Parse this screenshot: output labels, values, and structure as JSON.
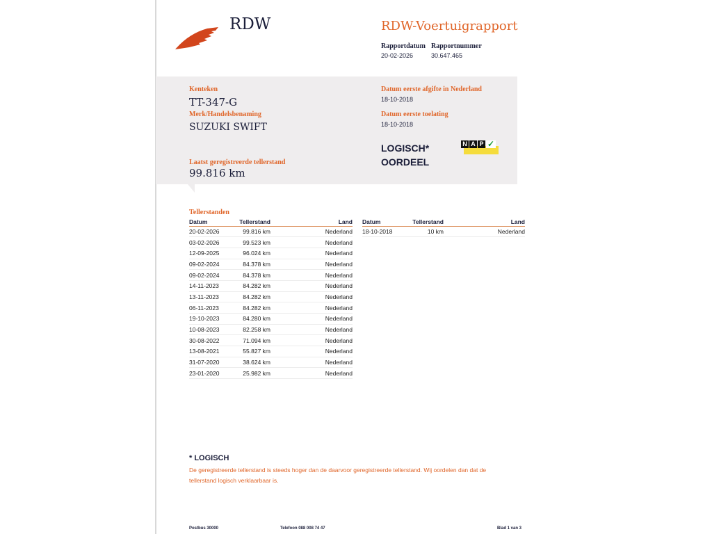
{
  "header": {
    "logo_text": "RDW",
    "title": "RDW-Voertuigrapport",
    "rapportdatum_label": "Rapportdatum",
    "rapportdatum": "20-02-2026",
    "rapportnummer_label": "Rapportnummer",
    "rapportnummer": "30.647.465"
  },
  "vehicle": {
    "kenteken_label": "Kenteken",
    "kenteken": "TT-347-G",
    "merk_label": "Merk/Handelsbenaming",
    "merk": "SUZUKI SWIFT",
    "teller_label": "Laatst geregistreerde tellerstand",
    "teller": "99.816 km",
    "afgifte_label": "Datum eerste afgifte in Nederland",
    "afgifte": "18-10-2018",
    "toelating_label": "Datum eerste toelating",
    "toelating": "18-10-2018",
    "oordeel_line1": "LOGISCH*",
    "oordeel_line2": "OORDEEL",
    "nap_letters": [
      "N",
      "A",
      "P"
    ],
    "nap_icon": "checkmark-icon",
    "brand_color": "#e0662a"
  },
  "tellerstanden": {
    "title": "Tellerstanden",
    "headers": [
      "Datum",
      "Tellerstand",
      "Land"
    ],
    "left": [
      [
        "20-02-2026",
        "99.816 km",
        "Nederland"
      ],
      [
        "03-02-2026",
        "99.523 km",
        "Nederland"
      ],
      [
        "12-09-2025",
        "96.024 km",
        "Nederland"
      ],
      [
        "09-02-2024",
        "84.378 km",
        "Nederland"
      ],
      [
        "09-02-2024",
        "84.378 km",
        "Nederland"
      ],
      [
        "14-11-2023",
        "84.282 km",
        "Nederland"
      ],
      [
        "13-11-2023",
        "84.282 km",
        "Nederland"
      ],
      [
        "06-11-2023",
        "84.282 km",
        "Nederland"
      ],
      [
        "19-10-2023",
        "84.280 km",
        "Nederland"
      ],
      [
        "10-08-2023",
        "82.258 km",
        "Nederland"
      ],
      [
        "30-08-2022",
        "71.094 km",
        "Nederland"
      ],
      [
        "13-08-2021",
        "55.827 km",
        "Nederland"
      ],
      [
        "31-07-2020",
        "38.624 km",
        "Nederland"
      ],
      [
        "23-01-2020",
        "25.982 km",
        "Nederland"
      ]
    ],
    "right": [
      [
        "18-10-2018",
        "10 km",
        "Nederland"
      ]
    ]
  },
  "note": {
    "title": "* LOGISCH",
    "text": "De geregistreerde tellerstand is steeds hoger dan de daarvoor geregistreerde tellerstand. Wij oordelen dan dat de tellerstand logisch verklaarbaar is."
  },
  "footer": {
    "address": "Postbus 30000",
    "phone": "Telefoon 088 008 74 47",
    "page": "Blad 1 van 3"
  }
}
